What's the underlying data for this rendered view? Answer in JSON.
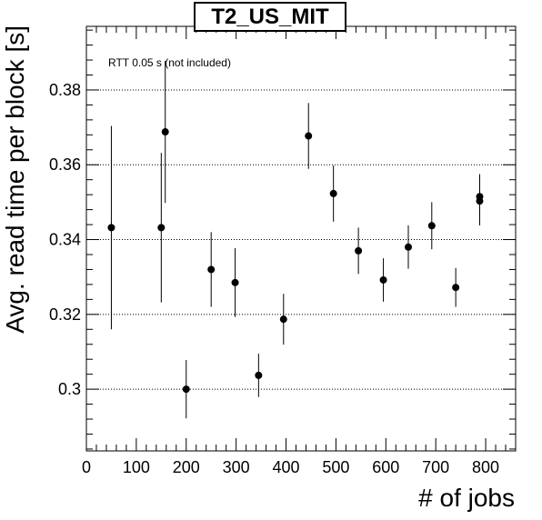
{
  "chart_data": {
    "type": "scatter",
    "title": "T2_US_MIT",
    "xlabel": "# of jobs",
    "ylabel": "Avg. read time per block [s]",
    "annotation": "RTT 0.05 s (not included)",
    "xlim": [
      0,
      860
    ],
    "ylim": [
      0.2835,
      0.397
    ],
    "x_ticks": [
      0,
      100,
      200,
      300,
      400,
      500,
      600,
      700,
      800
    ],
    "x_tick_labels": [
      "0",
      "100",
      "200",
      "300",
      "400",
      "500",
      "600",
      "700",
      "800"
    ],
    "y_ticks": [
      0.3,
      0.32,
      0.34,
      0.36,
      0.38
    ],
    "y_tick_labels": [
      "0.3",
      "0.32",
      "0.34",
      "0.36",
      "0.38"
    ],
    "grid": "horizontal-dotted",
    "marker_color": "#000000",
    "points": [
      {
        "x": 50,
        "y": 0.3432,
        "err": 0.0272
      },
      {
        "x": 150,
        "y": 0.3432,
        "err": 0.02
      },
      {
        "x": 158,
        "y": 0.3688,
        "err": 0.019
      },
      {
        "x": 200,
        "y": 0.3,
        "err": 0.0078
      },
      {
        "x": 250,
        "y": 0.332,
        "err": 0.01
      },
      {
        "x": 298,
        "y": 0.3285,
        "err": 0.0092
      },
      {
        "x": 345,
        "y": 0.3037,
        "err": 0.0058
      },
      {
        "x": 395,
        "y": 0.3187,
        "err": 0.0068
      },
      {
        "x": 445,
        "y": 0.3677,
        "err": 0.0088
      },
      {
        "x": 495,
        "y": 0.3523,
        "err": 0.0075
      },
      {
        "x": 545,
        "y": 0.337,
        "err": 0.0062
      },
      {
        "x": 595,
        "y": 0.3292,
        "err": 0.0058
      },
      {
        "x": 645,
        "y": 0.338,
        "err": 0.0058
      },
      {
        "x": 692,
        "y": 0.3437,
        "err": 0.0063
      },
      {
        "x": 740,
        "y": 0.3272,
        "err": 0.0052
      },
      {
        "x": 788,
        "y": 0.3515,
        "err": 0.006
      },
      {
        "x": 788,
        "y": 0.3503,
        "err": 0.0065
      }
    ]
  }
}
